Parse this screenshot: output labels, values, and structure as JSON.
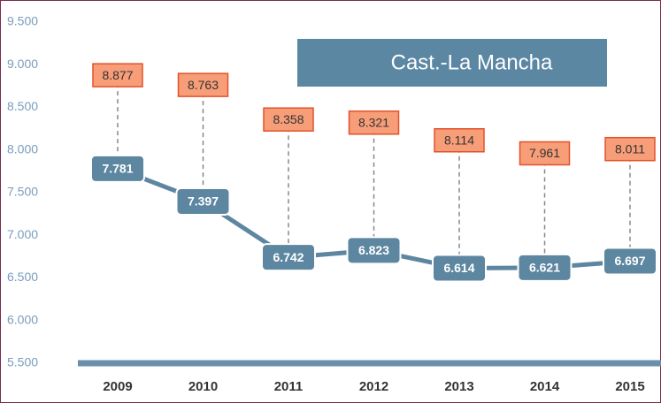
{
  "chart_data": {
    "type": "line",
    "title": "Cast.-La Mancha",
    "categories": [
      "2009",
      "2010",
      "2011",
      "2012",
      "2013",
      "2014",
      "2015"
    ],
    "series": [
      {
        "color": "#5d86a1",
        "values": [
          7781,
          7397,
          6742,
          6823,
          6614,
          6621,
          6697
        ],
        "value_labels": [
          "7.781",
          "7.397",
          "6.742",
          "6.823",
          "6.614",
          "6.621",
          "6.697"
        ]
      },
      {
        "color": "#f79d78",
        "values": [
          8877,
          8763,
          8358,
          8321,
          8114,
          7961,
          8011
        ],
        "value_labels": [
          "8.877",
          "8.763",
          "8.358",
          "8.321",
          "8.114",
          "7.961",
          "8.011"
        ]
      }
    ],
    "ylim": [
      5500,
      9500
    ],
    "yticks": [
      {
        "value": 5500,
        "label": "5.500"
      },
      {
        "value": 6000,
        "label": "6.000"
      },
      {
        "value": 6500,
        "label": "6.500"
      },
      {
        "value": 7000,
        "label": "7.000"
      },
      {
        "value": 7500,
        "label": "7.500"
      },
      {
        "value": 8000,
        "label": "8.000"
      },
      {
        "value": 8500,
        "label": "8.500"
      },
      {
        "value": 9000,
        "label": "9.000"
      },
      {
        "value": 9500,
        "label": "9.500"
      }
    ]
  }
}
